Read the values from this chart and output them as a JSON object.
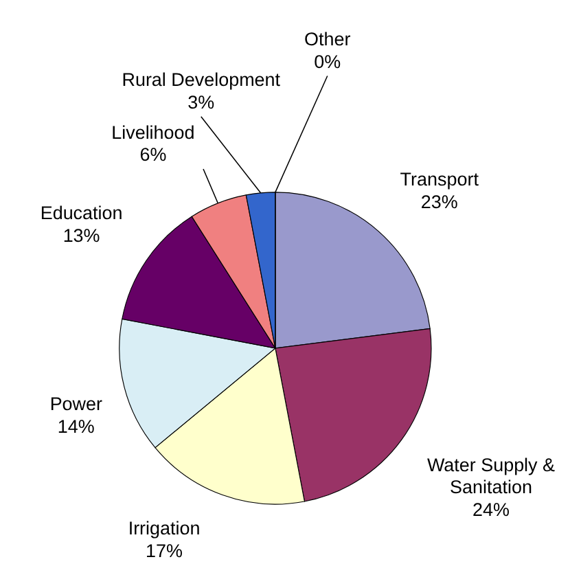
{
  "chart_data": {
    "type": "pie",
    "categories": [
      "Transport",
      "Water Supply & Sanitation",
      "Irrigation",
      "Power",
      "Education",
      "Livelihood",
      "Rural Development",
      "Other"
    ],
    "values": [
      23,
      24,
      17,
      14,
      13,
      6,
      3,
      0
    ],
    "colors": [
      "#9999cc",
      "#993366",
      "#ffffcc",
      "#d9eef5",
      "#660066",
      "#f08080",
      "#3366cc",
      "#993300"
    ],
    "value_labels": [
      "23%",
      "24%",
      "17%",
      "14%",
      "13%",
      "6%",
      "3%",
      "0%"
    ]
  }
}
